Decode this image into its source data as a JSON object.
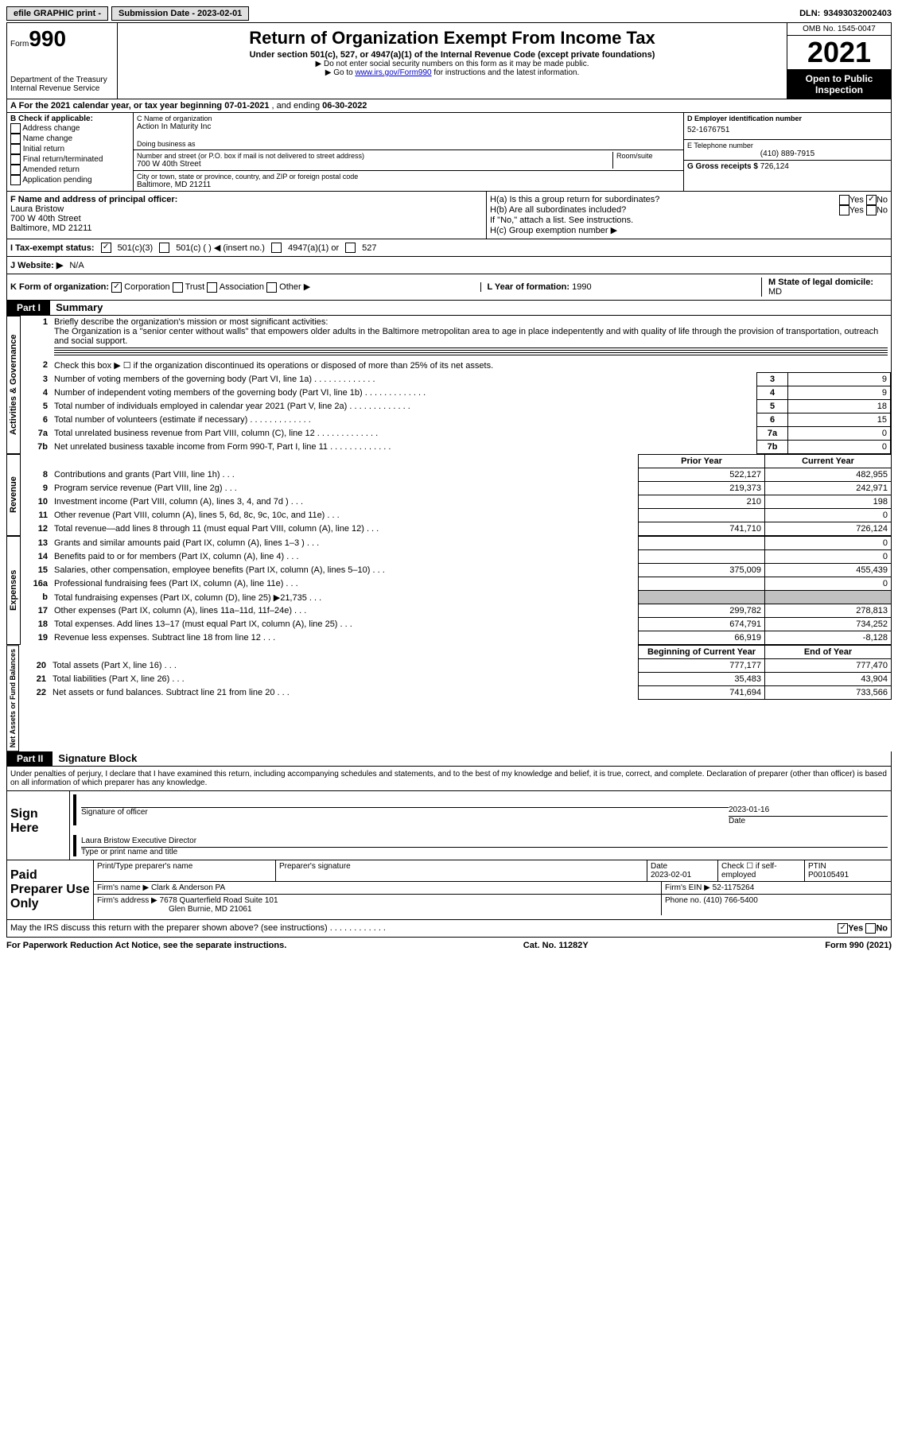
{
  "top": {
    "efile_label": "efile GRAPHIC print -",
    "submission": "Submission Date - 2023-02-01",
    "dln_label": "DLN:",
    "dln": "93493032002403"
  },
  "header": {
    "form_word": "Form",
    "form_num": "990",
    "title": "Return of Organization Exempt From Income Tax",
    "subtitle": "Under section 501(c), 527, or 4947(a)(1) of the Internal Revenue Code (except private foundations)",
    "note1": "▶ Do not enter social security numbers on this form as it may be made public.",
    "note2_pre": "▶ Go to ",
    "note2_link": "www.irs.gov/Form990",
    "note2_post": " for instructions and the latest information.",
    "dept": "Department of the Treasury",
    "irs": "Internal Revenue Service",
    "omb": "OMB No. 1545-0047",
    "year": "2021",
    "inspection": "Open to Public Inspection"
  },
  "row_a": {
    "label": "A For the 2021 calendar year, or tax year beginning ",
    "begin": "07-01-2021",
    "mid": " , and ending ",
    "end": "06-30-2022"
  },
  "col_b": {
    "label": "B Check if applicable:",
    "items": [
      "Address change",
      "Name change",
      "Initial return",
      "Final return/terminated",
      "Amended return",
      "Application pending"
    ]
  },
  "col_c": {
    "name_label": "C Name of organization",
    "name": "Action In Maturity Inc",
    "dba_label": "Doing business as",
    "street_label": "Number and street (or P.O. box if mail is not delivered to street address)",
    "room_label": "Room/suite",
    "street": "700 W 40th Street",
    "city_label": "City or town, state or province, country, and ZIP or foreign postal code",
    "city": "Baltimore, MD  21211"
  },
  "col_d": {
    "ein_label": "D Employer identification number",
    "ein": "52-1676751",
    "phone_label": "E Telephone number",
    "phone": "(410) 889-7915",
    "gross_label": "G Gross receipts $",
    "gross": "726,124"
  },
  "row_f": {
    "label": "F Name and address of principal officer:",
    "name": "Laura Bristow",
    "street": "700 W 40th Street",
    "city": "Baltimore, MD  21211"
  },
  "row_h": {
    "ha_label": "H(a)  Is this a group return for subordinates?",
    "hb_label": "H(b)  Are all subordinates included?",
    "hb_note": "If \"No,\" attach a list. See instructions.",
    "hc_label": "H(c)  Group exemption number ▶",
    "yes": "Yes",
    "no": "No"
  },
  "row_i": {
    "label": "I  Tax-exempt status:",
    "opt1": "501(c)(3)",
    "opt2": "501(c) (  ) ◀ (insert no.)",
    "opt3": "4947(a)(1) or",
    "opt4": "527"
  },
  "row_j": {
    "label": "J  Website: ▶",
    "value": "N/A"
  },
  "row_k": {
    "label": "K Form of organization:",
    "opts": [
      "Corporation",
      "Trust",
      "Association",
      "Other ▶"
    ],
    "l_label": "L Year of formation:",
    "l_val": "1990",
    "m_label": "M State of legal domicile:",
    "m_val": "MD"
  },
  "part1": {
    "header": "Part I",
    "title": "Summary",
    "side_activities": "Activities & Governance",
    "side_revenue": "Revenue",
    "side_expenses": "Expenses",
    "side_netassets": "Net Assets or Fund Balances",
    "line1_label": "Briefly describe the organization's mission or most significant activities:",
    "line1_text": "The Organization is a \"senior center without walls\" that empowers older adults in the Baltimore metropolitan area to age in place indepentently and with quality of life through the provision of transportation, outreach and social support.",
    "line2": "Check this box ▶ ☐ if the organization discontinued its operations or disposed of more than 25% of its net assets.",
    "rows_gov": [
      {
        "n": "3",
        "label": "Number of voting members of the governing body (Part VI, line 1a)",
        "box": "3",
        "val": "9"
      },
      {
        "n": "4",
        "label": "Number of independent voting members of the governing body (Part VI, line 1b)",
        "box": "4",
        "val": "9"
      },
      {
        "n": "5",
        "label": "Total number of individuals employed in calendar year 2021 (Part V, line 2a)",
        "box": "5",
        "val": "18"
      },
      {
        "n": "6",
        "label": "Total number of volunteers (estimate if necessary)",
        "box": "6",
        "val": "15"
      },
      {
        "n": "7a",
        "label": "Total unrelated business revenue from Part VIII, column (C), line 12",
        "box": "7a",
        "val": "0"
      },
      {
        "n": "7b",
        "label": "Net unrelated business taxable income from Form 990-T, Part I, line 11",
        "box": "7b",
        "val": "0"
      }
    ],
    "prior_header": "Prior Year",
    "current_header": "Current Year",
    "rows_rev": [
      {
        "n": "8",
        "label": "Contributions and grants (Part VIII, line 1h)",
        "prior": "522,127",
        "curr": "482,955"
      },
      {
        "n": "9",
        "label": "Program service revenue (Part VIII, line 2g)",
        "prior": "219,373",
        "curr": "242,971"
      },
      {
        "n": "10",
        "label": "Investment income (Part VIII, column (A), lines 3, 4, and 7d )",
        "prior": "210",
        "curr": "198"
      },
      {
        "n": "11",
        "label": "Other revenue (Part VIII, column (A), lines 5, 6d, 8c, 9c, 10c, and 11e)",
        "prior": "",
        "curr": "0"
      },
      {
        "n": "12",
        "label": "Total revenue—add lines 8 through 11 (must equal Part VIII, column (A), line 12)",
        "prior": "741,710",
        "curr": "726,124"
      }
    ],
    "rows_exp": [
      {
        "n": "13",
        "label": "Grants and similar amounts paid (Part IX, column (A), lines 1–3 )",
        "prior": "",
        "curr": "0"
      },
      {
        "n": "14",
        "label": "Benefits paid to or for members (Part IX, column (A), line 4)",
        "prior": "",
        "curr": "0"
      },
      {
        "n": "15",
        "label": "Salaries, other compensation, employee benefits (Part IX, column (A), lines 5–10)",
        "prior": "375,009",
        "curr": "455,439"
      },
      {
        "n": "16a",
        "label": "Professional fundraising fees (Part IX, column (A), line 11e)",
        "prior": "",
        "curr": "0"
      },
      {
        "n": "b",
        "label": "Total fundraising expenses (Part IX, column (D), line 25) ▶21,735",
        "prior": "SHADED",
        "curr": "SHADED"
      },
      {
        "n": "17",
        "label": "Other expenses (Part IX, column (A), lines 11a–11d, 11f–24e)",
        "prior": "299,782",
        "curr": "278,813"
      },
      {
        "n": "18",
        "label": "Total expenses. Add lines 13–17 (must equal Part IX, column (A), line 25)",
        "prior": "674,791",
        "curr": "734,252"
      },
      {
        "n": "19",
        "label": "Revenue less expenses. Subtract line 18 from line 12",
        "prior": "66,919",
        "curr": "-8,128"
      }
    ],
    "beg_header": "Beginning of Current Year",
    "end_header": "End of Year",
    "rows_net": [
      {
        "n": "20",
        "label": "Total assets (Part X, line 16)",
        "prior": "777,177",
        "curr": "777,470"
      },
      {
        "n": "21",
        "label": "Total liabilities (Part X, line 26)",
        "prior": "35,483",
        "curr": "43,904"
      },
      {
        "n": "22",
        "label": "Net assets or fund balances. Subtract line 21 from line 20",
        "prior": "741,694",
        "curr": "733,566"
      }
    ]
  },
  "part2": {
    "header": "Part II",
    "title": "Signature Block",
    "para": "Under penalties of perjury, I declare that I have examined this return, including accompanying schedules and statements, and to the best of my knowledge and belief, it is true, correct, and complete. Declaration of preparer (other than officer) is based on all information of which preparer has any knowledge.",
    "sign_here": "Sign Here",
    "sig_officer": "Signature of officer",
    "sig_date": "2023-01-16",
    "date_label": "Date",
    "name_title": "Laura Bristow Executive Director",
    "type_label": "Type or print name and title",
    "paid": "Paid Preparer Use Only",
    "prep_name_label": "Print/Type preparer's name",
    "prep_sig_label": "Preparer's signature",
    "prep_date_label": "Date",
    "prep_date": "2023-02-01",
    "check_if": "Check ☐ if self-employed",
    "ptin_label": "PTIN",
    "ptin": "P00105491",
    "firm_name_label": "Firm's name    ▶",
    "firm_name": "Clark & Anderson PA",
    "firm_ein_label": "Firm's EIN ▶",
    "firm_ein": "52-1175264",
    "firm_addr_label": "Firm's address ▶",
    "firm_addr1": "7678 Quarterfield Road Suite 101",
    "firm_addr2": "Glen Burnie, MD  21061",
    "phone_label": "Phone no.",
    "phone": "(410) 766-5400",
    "discuss": "May the IRS discuss this return with the preparer shown above? (see instructions)",
    "yes": "Yes",
    "no": "No"
  },
  "footer": {
    "paperwork": "For Paperwork Reduction Act Notice, see the separate instructions.",
    "cat": "Cat. No. 11282Y",
    "form": "Form 990 (2021)"
  }
}
